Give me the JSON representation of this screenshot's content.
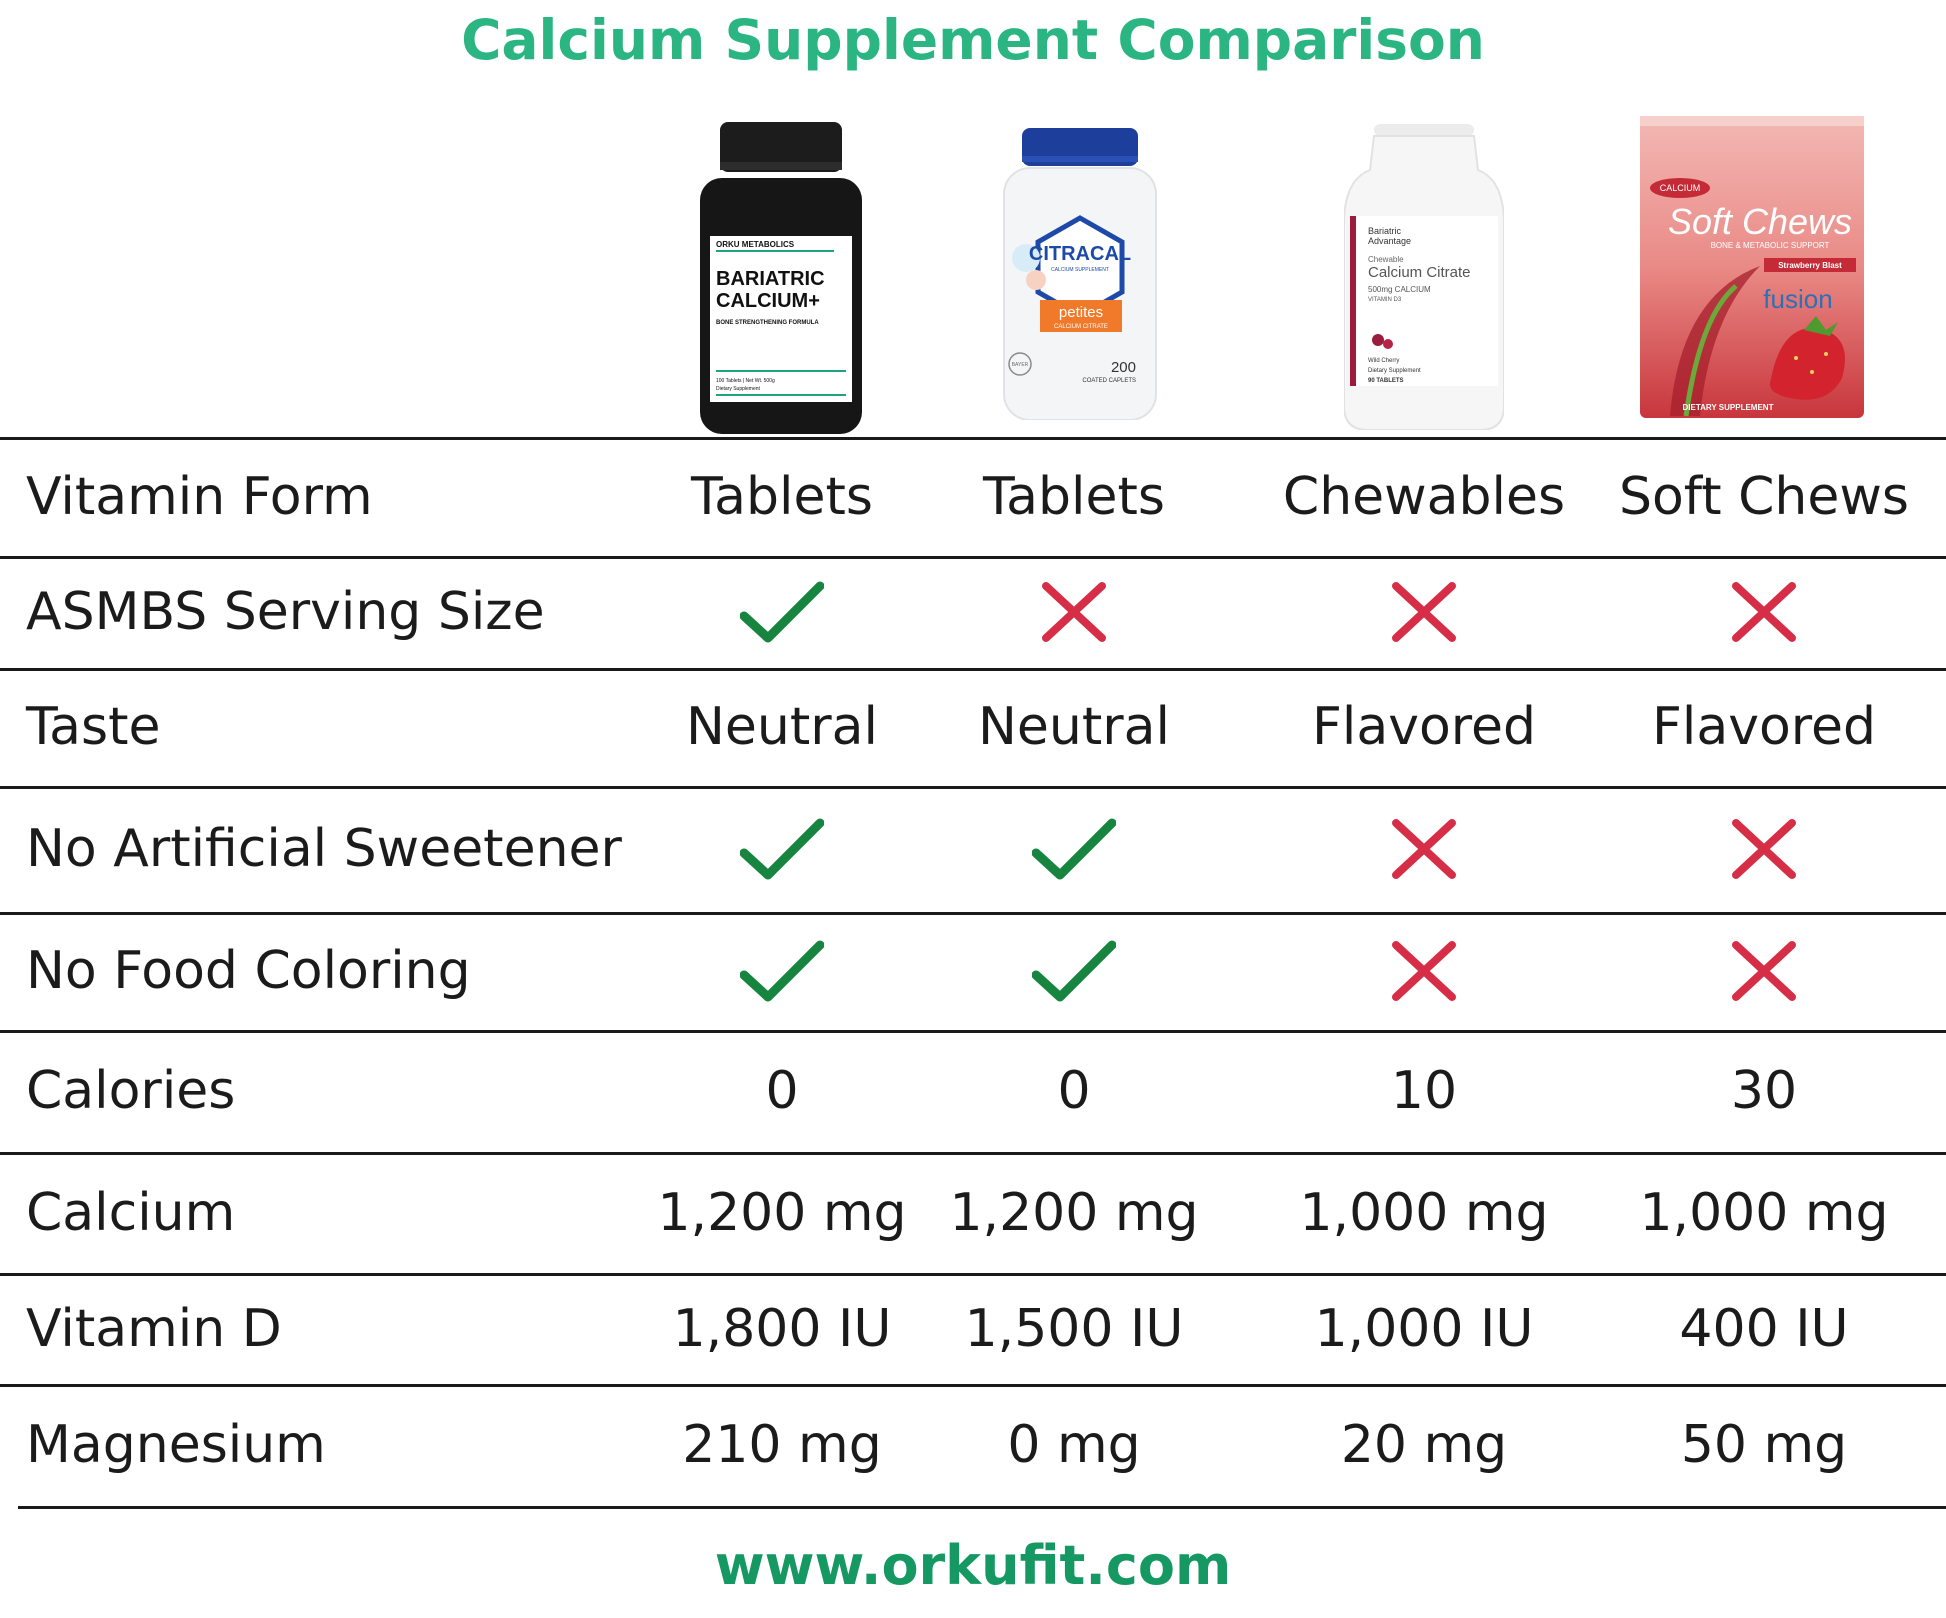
{
  "title": "Calcium Supplement Comparison",
  "footer": "www.orkufit.com",
  "colors": {
    "title": "#2bb582",
    "footer": "#169862",
    "check": "#17843f",
    "cross": "#d62e46",
    "rule": "#1a1a1a"
  },
  "products": [
    {
      "brand": "ORKU METABOLICS",
      "name_line1": "BARIATRIC",
      "name_line2": "CALCIUM+",
      "tagline": "BONE STRENGTHENING FORMULA",
      "fine_print": "100 Tablets | Net Wt. 500g",
      "fine_print2": "Dietary Supplement"
    },
    {
      "brand": "CITRACAL",
      "sub": "CALCIUM SUPPLEMENT",
      "badge": "petites",
      "badge_sub": "CALCIUM CITRATE",
      "count": "200",
      "count_label": "COATED CAPLETS",
      "maker": "BAYER"
    },
    {
      "brand_line1": "Bariatric",
      "brand_line2": "Advantage",
      "line1": "Chewable",
      "line2": "Calcium Citrate",
      "line3": "500mg CALCIUM",
      "line4": "VITAMIN D3",
      "flavor": "Wild Cherry",
      "fine_print": "Dietary Supplement",
      "count": "90 TABLETS"
    },
    {
      "top": "CALCIUM",
      "name": "Soft Chews",
      "sub": "BONE & METABOLIC SUPPORT",
      "flavor": "Strawberry Blast",
      "brand": "fusion",
      "bottom": "DIETARY SUPPLEMENT"
    }
  ],
  "rows": [
    {
      "label": "Vitamin Form",
      "values": [
        "Tablets",
        "Tablets",
        "Chewables",
        "Soft Chews"
      ]
    },
    {
      "label": "ASMBS Serving Size",
      "marks": [
        "check",
        "cross",
        "cross",
        "cross"
      ]
    },
    {
      "label": "Taste",
      "values": [
        "Neutral",
        "Neutral",
        "Flavored",
        "Flavored"
      ]
    },
    {
      "label": "No Artificial Sweetener",
      "marks": [
        "check",
        "check",
        "cross",
        "cross"
      ]
    },
    {
      "label": "No Food Coloring",
      "marks": [
        "check",
        "check",
        "cross",
        "cross"
      ]
    },
    {
      "label": "Calories",
      "values": [
        "0",
        "0",
        "10",
        "30"
      ]
    },
    {
      "label": "Calcium",
      "values": [
        "1,200 mg",
        "1,200 mg",
        "1,000 mg",
        "1,000 mg"
      ]
    },
    {
      "label": "Vitamin D",
      "values": [
        "1,800 IU",
        "1,500 IU",
        "1,000 IU",
        "400 IU"
      ]
    },
    {
      "label": "Magnesium",
      "values": [
        "210 mg",
        "0 mg",
        "20 mg",
        "50 mg"
      ]
    }
  ]
}
